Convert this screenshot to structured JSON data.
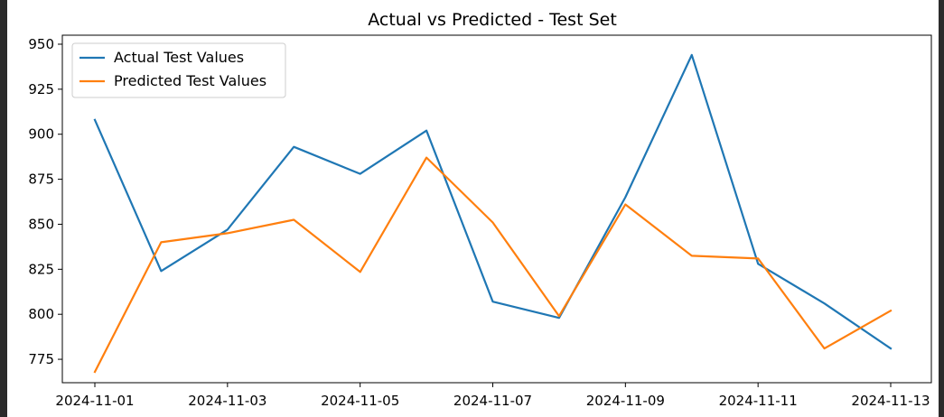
{
  "chart_data": {
    "type": "line",
    "title": "Actual vs Predicted - Test Set",
    "xlabel": "",
    "ylabel": "",
    "x": [
      "2024-11-01",
      "2024-11-02",
      "2024-11-03",
      "2024-11-04",
      "2024-11-05",
      "2024-11-06",
      "2024-11-07",
      "2024-11-08",
      "2024-11-09",
      "2024-11-10",
      "2024-11-11",
      "2024-11-12",
      "2024-11-13"
    ],
    "x_ticks": [
      "2024-11-01",
      "2024-11-03",
      "2024-11-05",
      "2024-11-07",
      "2024-11-09",
      "2024-11-11",
      "2024-11-13"
    ],
    "y_ticks": [
      775,
      800,
      825,
      850,
      875,
      900,
      925,
      950
    ],
    "ylim": [
      762,
      955
    ],
    "grid": false,
    "legend_position": "upper-left",
    "series": [
      {
        "name": "Actual Test Values",
        "color": "#1f77b4",
        "values": [
          908,
          824,
          847,
          893,
          878,
          902,
          807,
          798,
          865,
          944,
          828,
          806,
          781
        ]
      },
      {
        "name": "Predicted Test Values",
        "color": "#ff7f0e",
        "values": [
          768,
          840,
          845,
          852.5,
          823.5,
          887,
          851,
          799,
          861,
          832.5,
          831,
          781,
          802
        ]
      }
    ]
  }
}
